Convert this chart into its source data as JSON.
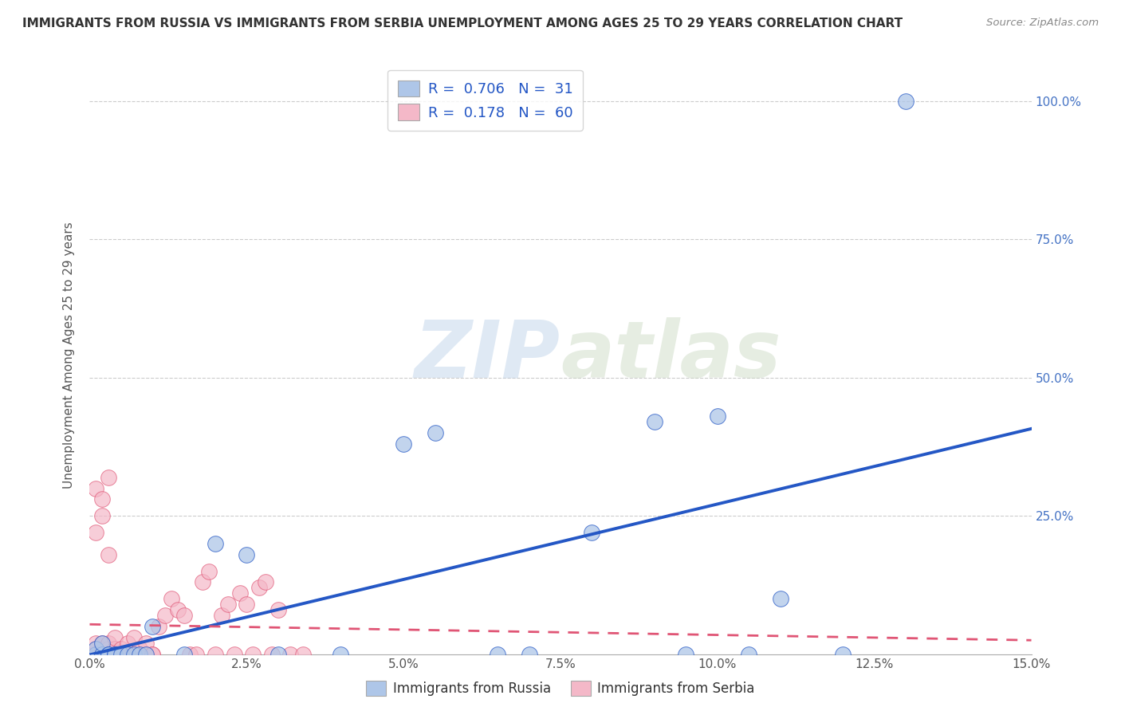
{
  "title": "IMMIGRANTS FROM RUSSIA VS IMMIGRANTS FROM SERBIA UNEMPLOYMENT AMONG AGES 25 TO 29 YEARS CORRELATION CHART",
  "source": "Source: ZipAtlas.com",
  "ylabel": "Unemployment Among Ages 25 to 29 years",
  "legend_russia": "Immigrants from Russia",
  "legend_serbia": "Immigrants from Serbia",
  "R_russia": 0.706,
  "N_russia": 31,
  "R_serbia": 0.178,
  "N_serbia": 60,
  "color_russia": "#aec6e8",
  "color_serbia": "#f4b8c8",
  "line_russia": "#2457c5",
  "line_serbia": "#e05575",
  "watermark_zip": "ZIP",
  "watermark_atlas": "atlas",
  "ytick_labels": [
    "25.0%",
    "50.0%",
    "75.0%",
    "100.0%"
  ],
  "ytick_values": [
    0.25,
    0.5,
    0.75,
    1.0
  ],
  "xlim": [
    0.0,
    0.15
  ],
  "ylim": [
    0.0,
    1.08
  ],
  "russia_x": [
    0.001,
    0.001,
    0.002,
    0.002,
    0.003,
    0.003,
    0.004,
    0.004,
    0.005,
    0.006,
    0.007,
    0.008,
    0.009,
    0.01,
    0.015,
    0.02,
    0.025,
    0.03,
    0.04,
    0.05,
    0.055,
    0.065,
    0.07,
    0.08,
    0.09,
    0.095,
    0.1,
    0.105,
    0.11,
    0.12,
    0.13
  ],
  "russia_y": [
    0.0,
    0.01,
    0.0,
    0.02,
    0.0,
    0.0,
    0.0,
    0.0,
    0.0,
    0.0,
    0.0,
    0.0,
    0.0,
    0.05,
    0.0,
    0.2,
    0.18,
    0.0,
    0.0,
    0.38,
    0.4,
    0.0,
    0.0,
    0.22,
    0.42,
    0.0,
    0.43,
    0.0,
    0.1,
    0.0,
    1.0
  ],
  "serbia_x": [
    0.0005,
    0.001,
    0.001,
    0.0015,
    0.001,
    0.002,
    0.002,
    0.0025,
    0.002,
    0.003,
    0.003,
    0.003,
    0.0035,
    0.003,
    0.004,
    0.004,
    0.004,
    0.0045,
    0.004,
    0.005,
    0.005,
    0.005,
    0.006,
    0.006,
    0.007,
    0.007,
    0.008,
    0.008,
    0.009,
    0.009,
    0.01,
    0.01,
    0.011,
    0.012,
    0.013,
    0.014,
    0.015,
    0.016,
    0.017,
    0.018,
    0.019,
    0.02,
    0.021,
    0.022,
    0.023,
    0.024,
    0.025,
    0.026,
    0.027,
    0.028,
    0.029,
    0.03,
    0.032,
    0.034,
    0.001,
    0.002,
    0.003,
    0.003,
    0.002,
    0.001
  ],
  "serbia_y": [
    0.0,
    0.0,
    0.01,
    0.0,
    0.02,
    0.0,
    0.01,
    0.0,
    0.02,
    0.0,
    0.01,
    0.0,
    0.0,
    0.02,
    0.0,
    0.01,
    0.0,
    0.0,
    0.03,
    0.0,
    0.01,
    0.0,
    0.0,
    0.02,
    0.0,
    0.03,
    0.0,
    0.01,
    0.0,
    0.02,
    0.0,
    0.0,
    0.05,
    0.07,
    0.1,
    0.08,
    0.07,
    0.0,
    0.0,
    0.13,
    0.15,
    0.0,
    0.07,
    0.09,
    0.0,
    0.11,
    0.09,
    0.0,
    0.12,
    0.13,
    0.0,
    0.08,
    0.0,
    0.0,
    0.3,
    0.25,
    0.32,
    0.18,
    0.28,
    0.22
  ]
}
